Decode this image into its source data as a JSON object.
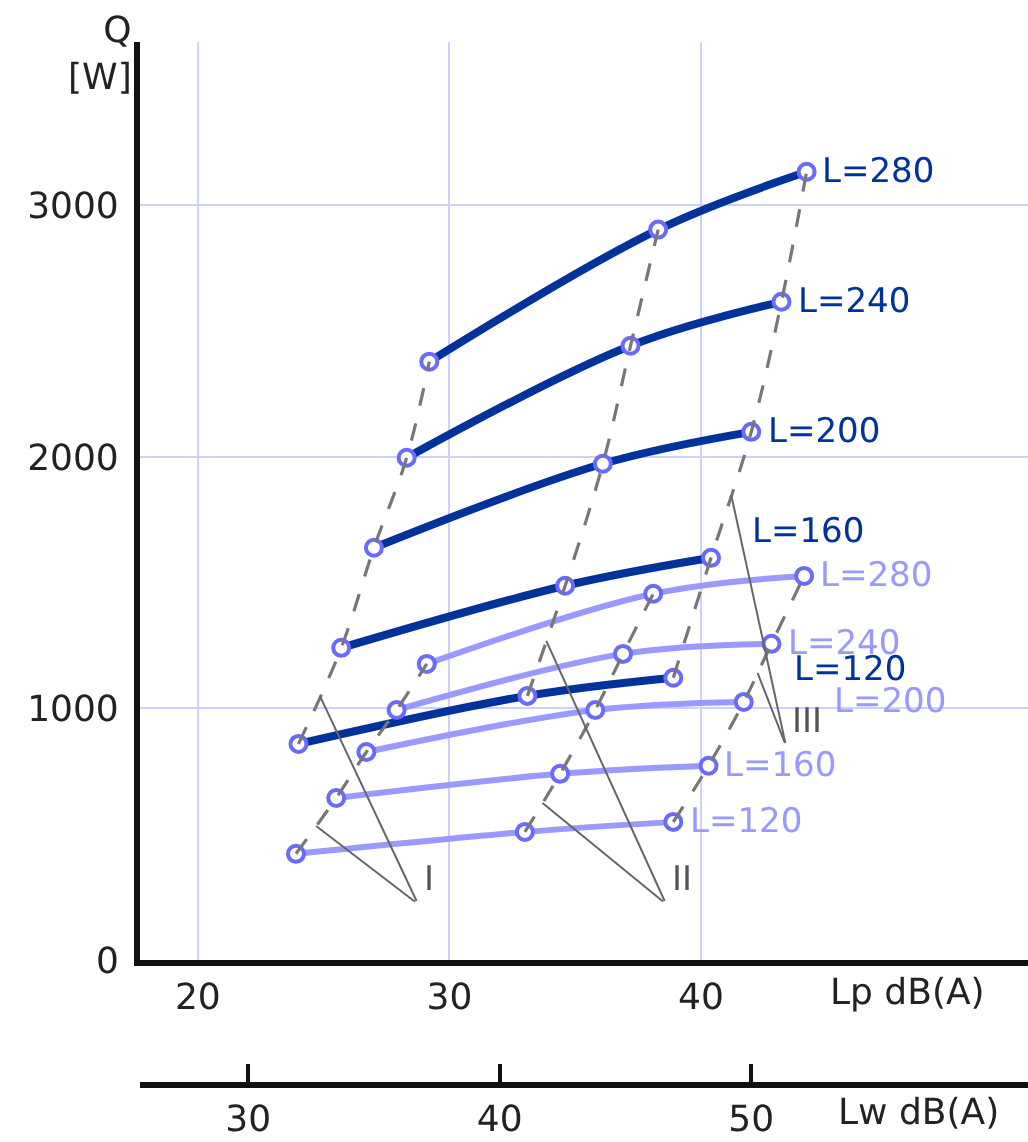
{
  "chart_data": {
    "type": "line",
    "xlabel": "Lp dB(A)",
    "ylabel": "Q\n[W]",
    "x2label": "Lw dB(A)",
    "xlim": [
      17.7,
      53
    ],
    "xticks": [
      20,
      30,
      40
    ],
    "ylim": [
      0,
      3650
    ],
    "yticks": [
      0,
      1000,
      2000,
      3000
    ],
    "x2lim": [
      25.7,
      61
    ],
    "x2ticks": [
      30,
      40,
      50
    ],
    "grid": true,
    "legend": false,
    "marker": "circle",
    "line_style": "solid",
    "series": [
      {
        "name": "L=280",
        "color": "#003399",
        "x": [
          29.2,
          38.3,
          44.2
        ],
        "values": [
          2379,
          2904,
          3134
        ]
      },
      {
        "name": "L=240",
        "color": "#003399",
        "x": [
          28.3,
          37.2,
          43.2
        ],
        "values": [
          1997,
          2442,
          2617
        ]
      },
      {
        "name": "L=200",
        "color": "#003399",
        "x": [
          27.0,
          36.1,
          42.0
        ],
        "values": [
          1639,
          1973,
          2100
        ]
      },
      {
        "name": "L=160",
        "color": "#003399",
        "x": [
          25.7,
          34.6,
          40.4
        ],
        "values": [
          1241,
          1488,
          1599
        ]
      },
      {
        "name": "L=120",
        "color": "#003399",
        "x": [
          24.0,
          33.1,
          38.9
        ],
        "values": [
          859,
          1050,
          1122
        ]
      },
      {
        "name": "L=280",
        "color": "#9999ff",
        "x": [
          29.1,
          38.1,
          44.1
        ],
        "values": [
          1177,
          1456,
          1527
        ]
      },
      {
        "name": "L=240",
        "color": "#9999ff",
        "x": [
          27.9,
          36.9,
          42.8
        ],
        "values": [
          994,
          1217,
          1257
        ]
      },
      {
        "name": "L=200",
        "color": "#9999ff",
        "x": [
          26.7,
          35.8,
          41.7
        ],
        "values": [
          827,
          994,
          1026
        ]
      },
      {
        "name": "L=160",
        "color": "#9999ff",
        "x": [
          25.5,
          34.4,
          40.3
        ],
        "values": [
          644,
          740,
          772
        ]
      },
      {
        "name": "L=120",
        "color": "#9999ff",
        "x": [
          23.9,
          33.0,
          38.9
        ],
        "values": [
          422,
          509,
          549
        ]
      },
      {
        "color": "#777777",
        "line_style": "dashed",
        "marker": "none",
        "x": [
          24.0,
          25.7,
          27.0,
          28.3,
          29.2
        ],
        "values": [
          859,
          1241,
          1639,
          1997,
          2379
        ]
      },
      {
        "color": "#777777",
        "line_style": "dashed",
        "marker": "none",
        "x": [
          23.9,
          25.5,
          26.7,
          27.9,
          29.1
        ],
        "values": [
          422,
          644,
          827,
          994,
          1177
        ]
      },
      {
        "color": "#777777",
        "line_style": "dashed",
        "marker": "none",
        "x": [
          33.1,
          34.6,
          36.1,
          37.2,
          38.3
        ],
        "values": [
          1050,
          1488,
          1973,
          2442,
          2904
        ]
      },
      {
        "color": "#777777",
        "line_style": "dashed",
        "marker": "none",
        "x": [
          33.0,
          34.4,
          35.8,
          36.9,
          38.1
        ],
        "values": [
          509,
          740,
          994,
          1217,
          1456
        ]
      },
      {
        "color": "#777777",
        "line_style": "dashed",
        "marker": "none",
        "x": [
          38.9,
          40.4,
          42.0,
          43.2,
          44.2
        ],
        "values": [
          1122,
          1599,
          2100,
          2617,
          3134
        ]
      },
      {
        "color": "#777777",
        "line_style": "dashed",
        "marker": "none",
        "x": [
          38.9,
          40.3,
          41.7,
          42.8,
          44.1
        ],
        "values": [
          549,
          772,
          1026,
          1257,
          1527
        ]
      }
    ],
    "annotations": [
      {
        "text": "I",
        "x": 24.85,
        "y": 1050
      },
      {
        "text": "II",
        "x": 33.85,
        "y": 1269
      },
      {
        "text": "III",
        "x": 41.2,
        "y": 1850
      }
    ]
  }
}
